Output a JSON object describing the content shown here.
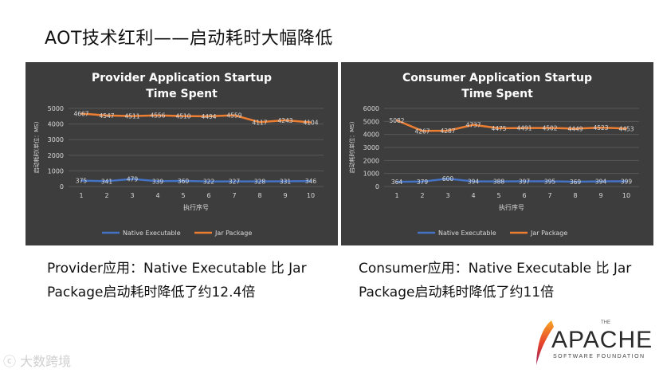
{
  "page": {
    "title": "AOT技术红利——启动耗时大幅降低",
    "watermark": "大数跨境"
  },
  "captions": {
    "provider": "Provider应用：Native Executable 比 Jar Package启动耗时降低了约12.4倍",
    "consumer": "Consumer应用：Native Executable 比 Jar Package启动耗时降低了约11倍"
  },
  "logo": {
    "the": "THE",
    "name": "APACHE",
    "subtitle": "SOFTWARE FOUNDATION"
  },
  "colors": {
    "panel_bg": "#3d3d3d",
    "native": "#4472c4",
    "jar": "#ed7d31",
    "text": "#d9d9d9",
    "title_text": "#ffffff",
    "feather": "#c8202f"
  },
  "chart_data": [
    {
      "type": "line",
      "title": "Provider Application Startup Time Spent",
      "xlabel": "执行序号",
      "ylabel": "启动耗时(单位：MS)",
      "ylim": [
        0,
        5000
      ],
      "yticks": [
        0,
        1000,
        2000,
        3000,
        4000,
        5000
      ],
      "categories": [
        "1",
        "2",
        "3",
        "4",
        "5",
        "6",
        "7",
        "8",
        "9",
        "10"
      ],
      "grid": true,
      "legend": "bottom",
      "series": [
        {
          "name": "Native Executable",
          "values": [
            375,
            341,
            479,
            339,
            360,
            322,
            327,
            328,
            331,
            346
          ]
        },
        {
          "name": "Jar Package",
          "values": [
            4667,
            4547,
            4511,
            4556,
            4510,
            4494,
            4559,
            4117,
            4243,
            4104
          ]
        }
      ]
    },
    {
      "type": "line",
      "title": "Consumer Application Startup Time Spent",
      "xlabel": "执行序号",
      "ylabel": "启动耗时(单位：MS)",
      "ylim": [
        0,
        6000
      ],
      "yticks": [
        0,
        1000,
        2000,
        3000,
        4000,
        5000,
        6000
      ],
      "categories": [
        "1",
        "2",
        "3",
        "4",
        "5",
        "6",
        "7",
        "8",
        "9",
        "10"
      ],
      "grid": true,
      "legend": "bottom",
      "series": [
        {
          "name": "Native Executable",
          "values": [
            364,
            379,
            600,
            394,
            388,
            397,
            395,
            369,
            394,
            399
          ]
        },
        {
          "name": "Jar Package",
          "values": [
            5082,
            4267,
            4287,
            4737,
            4475,
            4491,
            4502,
            4449,
            4523,
            4453
          ]
        }
      ]
    }
  ]
}
